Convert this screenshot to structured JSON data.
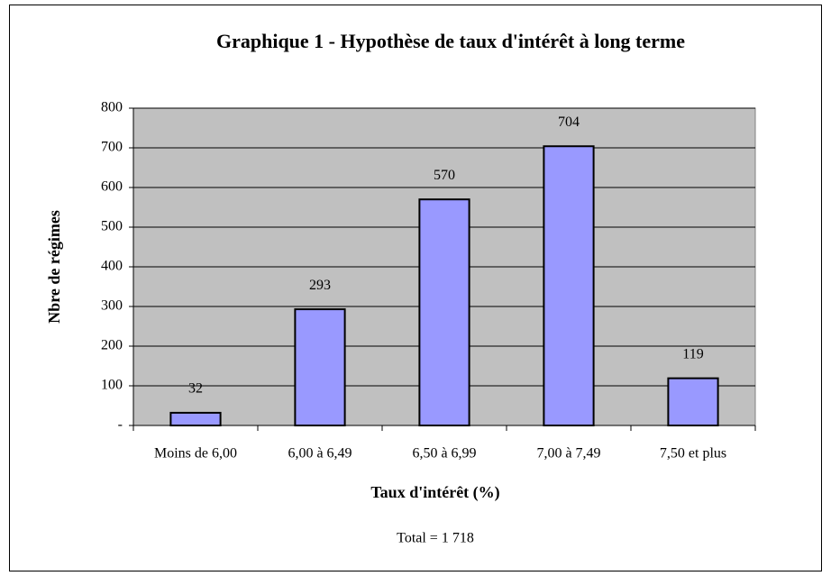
{
  "chart_data": {
    "type": "bar",
    "title": "Graphique 1 - Hypothèse de taux d'intérêt à long terme",
    "x_label": "Taux d'intérêt (%)",
    "y_label": "Nbre de régimes",
    "annotation": "Total = 1 718",
    "categories": [
      "Moins de 6,00",
      "6,00 à 6,49",
      "6,50 à 6,99",
      "7,00 à 7,49",
      "7,50 et plus"
    ],
    "values": [
      32,
      293,
      570,
      704,
      119
    ],
    "color": "#9999ff",
    "background": "#c0c0c0",
    "ylim": [
      0,
      800
    ],
    "yticks": [
      {
        "value": 0,
        "label": "-"
      },
      100,
      200,
      300,
      400,
      500,
      600,
      700,
      800
    ],
    "grid": true
  }
}
